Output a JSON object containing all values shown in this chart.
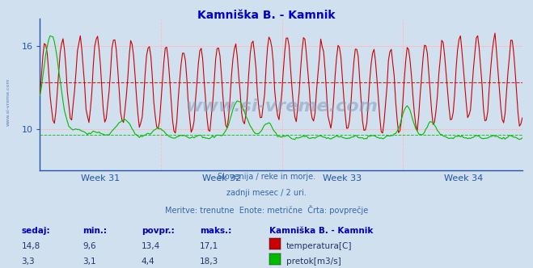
{
  "title": "Kamniška B. - Kamnik",
  "title_color": "#0000cc",
  "bg_color": "#d0e0ee",
  "plot_bg_color": "#d0e0ee",
  "axis_color": "#2255aa",
  "temp_color": "#cc0000",
  "flow_color": "#00bb00",
  "temp_avg": 13.4,
  "flow_avg": 4.4,
  "temp_ylim": [
    7.0,
    18.0
  ],
  "temp_yticks": [
    10,
    16
  ],
  "flow_ylim_display": [
    -1,
    22
  ],
  "week_labels": [
    "Week 31",
    "Week 32",
    "Week 33",
    "Week 34"
  ],
  "subtitle1": "Slovenija / reke in morje.",
  "subtitle2": "zadnji mesec / 2 uri.",
  "subtitle3": "Meritve: trenutne  Enote: metrične  Črta: povprečje",
  "watermark": "www.si-vreme.com",
  "side_watermark": "www.si-vreme.com",
  "col_headers": [
    "sedaj:",
    "min.:",
    "povpr.:",
    "maks.:"
  ],
  "station_header": "Kamniška B. - Kamnik",
  "temp_row": [
    "14,8",
    "9,6",
    "13,4",
    "17,1"
  ],
  "flow_row": [
    "3,3",
    "3,1",
    "4,4",
    "18,3"
  ],
  "temp_legend": "temperatura[C]",
  "flow_legend": "pretok[m3/s]",
  "n_points": 336,
  "days": 28,
  "points_per_day": 12
}
